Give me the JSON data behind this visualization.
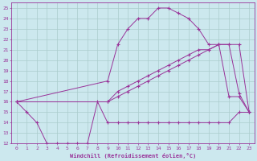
{
  "xlabel": "Windchill (Refroidissement éolien,°C)",
  "bg_color": "#cce8ee",
  "line_color": "#993399",
  "grid_color": "#aacccc",
  "xlim": [
    -0.5,
    23.5
  ],
  "ylim": [
    12,
    25.5
  ],
  "xticks": [
    0,
    1,
    2,
    3,
    4,
    5,
    6,
    7,
    8,
    9,
    10,
    11,
    12,
    13,
    14,
    15,
    16,
    17,
    18,
    19,
    20,
    21,
    22,
    23
  ],
  "yticks": [
    12,
    13,
    14,
    15,
    16,
    17,
    18,
    19,
    20,
    21,
    22,
    23,
    24,
    25
  ],
  "line1_x": [
    0,
    1,
    2,
    3,
    4,
    5,
    6,
    7,
    8,
    9,
    10,
    11,
    12,
    13,
    14,
    15,
    16,
    17,
    18,
    19,
    20,
    21,
    22,
    23
  ],
  "line1_y": [
    16,
    15,
    14,
    12,
    12,
    12,
    12,
    12,
    16,
    14,
    14,
    14,
    14,
    14,
    14,
    14,
    14,
    14,
    14,
    14,
    14,
    14,
    15,
    15
  ],
  "line2_x": [
    0,
    9,
    10,
    11,
    12,
    13,
    14,
    15,
    16,
    17,
    18,
    19,
    20,
    21,
    22,
    23
  ],
  "line2_y": [
    16,
    18,
    21.5,
    23,
    24,
    24,
    25,
    25,
    24.5,
    24,
    23,
    21.5,
    21.5,
    16.5,
    16.5,
    15
  ],
  "line3_x": [
    0,
    9,
    10,
    11,
    12,
    13,
    14,
    15,
    16,
    17,
    18,
    19,
    20,
    21,
    22,
    23
  ],
  "line3_y": [
    16,
    16,
    17,
    17.5,
    18,
    18.5,
    19,
    19.5,
    20,
    20.5,
    21,
    21,
    21.5,
    21.5,
    21.5,
    15
  ],
  "line4_x": [
    0,
    9,
    10,
    11,
    12,
    13,
    14,
    15,
    16,
    17,
    18,
    19,
    20,
    21,
    22,
    23
  ],
  "line4_y": [
    16,
    16,
    16.5,
    17,
    17.5,
    18,
    18.5,
    19,
    19.5,
    20,
    20.5,
    21,
    21.5,
    21.5,
    16.8,
    15
  ]
}
